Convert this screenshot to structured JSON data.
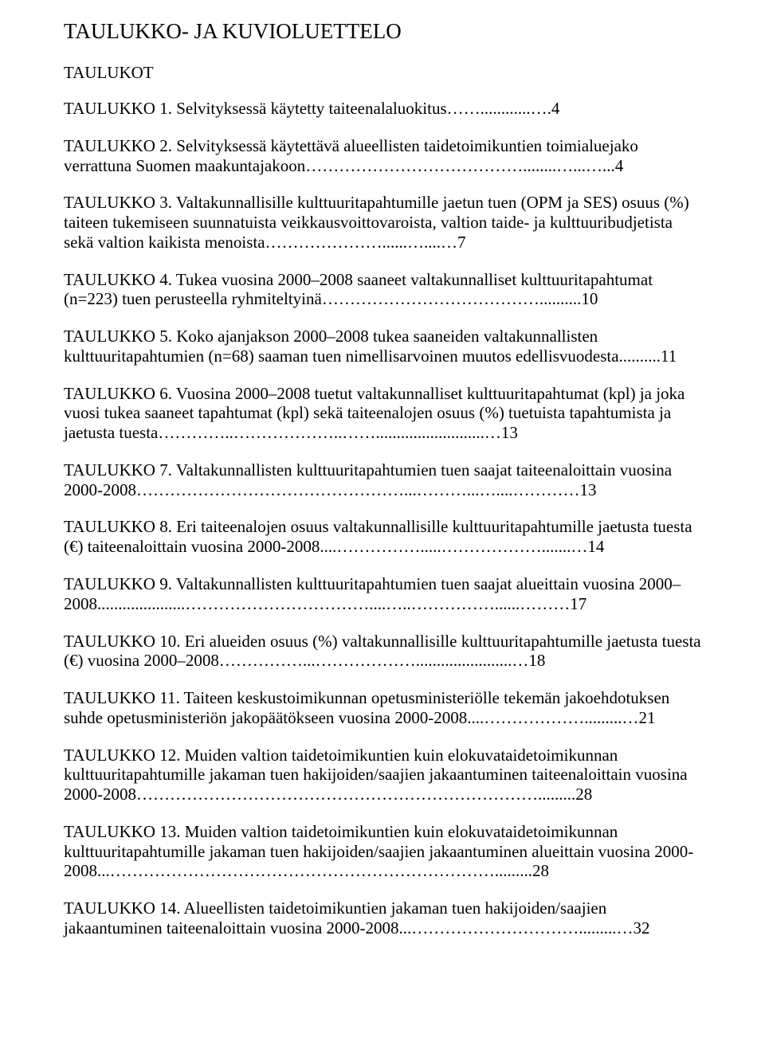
{
  "title": "TAULUKKO- JA KUVIOLUETTELO",
  "subtitle": "TAULUKOT",
  "entries": [
    {
      "label": "TAULUKKO 1.",
      "text": " Selvityksessä käytetty taiteenalaluokitus……............….4"
    },
    {
      "label": "TAULUKKO 2.",
      "text": " Selvityksessä käytettävä alueellisten taidetoimikuntien toimialuejako verrattuna Suomen maakuntajakoon…………………………………........…...…...4"
    },
    {
      "label": "TAULUKKO 3.",
      "text": " Valtakunnallisille kulttuuritapahtumille jaetun tuen (OPM ja SES) osuus (%) taiteen tukemiseen suunnatuista veikkausvoittovaroista, valtion taide- ja kulttuuribudjetista sekä valtion kaikista menoista…………………......…....…7"
    },
    {
      "label": "TAULUKKO 4.",
      "text": " Tukea vuosina 2000–2008 saaneet valtakunnalliset kulttuuritapahtumat (n=223) tuen perusteella ryhmiteltyinä…………………………………..........10"
    },
    {
      "label": "TAULUKKO 5.",
      "text": " Koko ajanjakson 2000–2008 tukea saaneiden valtakunnallisten kulttuuritapahtumien (n=68) saaman tuen nimellisarvoinen muutos edellisvuodesta..........11"
    },
    {
      "label": "TAULUKKO 6.",
      "text": " Vuosina 2000–2008 tuetut valtakunnalliset kulttuuritapahtumat (kpl) ja joka vuosi tukea saaneet tapahtumat (kpl) sekä taiteenalojen osuus (%) tuetuista tapahtumista ja jaetusta tuesta…………..………………..……..........................…13"
    },
    {
      "label": "TAULUKKO 7.",
      "text": " Valtakunnallisten kulttuuritapahtumien tuen saajat taiteenaloittain vuosina 2000-2008…………………………………………...………...…....…………13"
    },
    {
      "label": "TAULUKKO 8.",
      "text": " Eri taiteenalojen osuus valtakunnallisille kulttuuritapahtumille jaetusta tuesta (€) taiteenaloittain vuosina 2000-2008....…………….....……………….......…14"
    },
    {
      "label": "TAULUKKO 9.",
      "text": " Valtakunnallisten kulttuuritapahtumien tuen saajat alueittain vuosina 2000–2008.....................……………………………....…..……………......………17"
    },
    {
      "label": "TAULUKKO 10.",
      "text": " Eri alueiden osuus (%) valtakunnallisille kulttuuritapahtumille jaetusta tuesta (€) vuosina 2000–2008……………...……………….......................…18"
    },
    {
      "label": "TAULUKKO 11.",
      "text": " Taiteen keskustoimikunnan opetusministeriölle tekemän jakoehdotuksen suhde opetusministeriön jakopäätökseen vuosina 2000-2008....……………….........…21"
    },
    {
      "label": "TAULUKKO 12.",
      "text": " Muiden valtion taidetoimikuntien kuin elokuvataidetoimikunnan kulttuuritapahtumille jakaman tuen hakijoiden/saajien jakaantuminen taiteenaloittain vuosina 2000-2008……………………………………………………………….........28"
    },
    {
      "label": "TAULUKKO 13.",
      "text": " Muiden valtion taidetoimikuntien kuin elokuvataidetoimikunnan kulttuuritapahtumille jakaman tuen hakijoiden/saajien jakaantuminen alueittain vuosina 2000-2008...…………………………………………………………….........28"
    },
    {
      "label": "TAULUKKO 14.",
      "text": " Alueellisten taidetoimikuntien jakaman tuen hakijoiden/saajien jakaantuminen taiteenaloittain vuosina 2000-2008...………………………….........…32"
    }
  ]
}
